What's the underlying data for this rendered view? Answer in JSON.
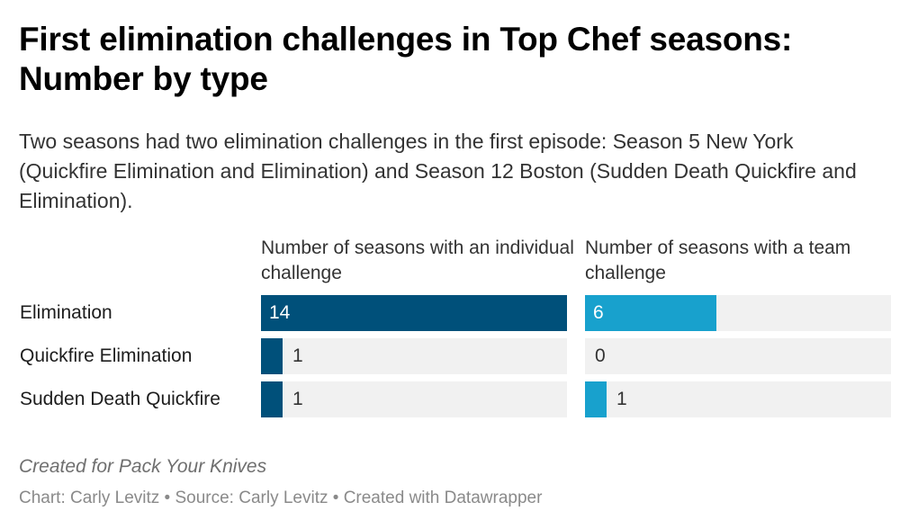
{
  "header": {
    "title": "First elimination challenges in Top Chef seasons: Number by type",
    "subtitle": "Two seasons had two elimination challenges in the first episode: Season 5 New York (Quickfire Elimination and Elimination) and Season 12 Boston (Sudden Death Quickfire and Elimination)."
  },
  "chart_data": {
    "type": "bar",
    "categories": [
      "Elimination",
      "Quickfire Elimination",
      "Sudden Death Quickfire"
    ],
    "series": [
      {
        "name": "Number of seasons with an individual challenge",
        "values": [
          14,
          1,
          1
        ],
        "color": "#00507a"
      },
      {
        "name": "Number of seasons with a team challenge",
        "values": [
          6,
          0,
          1
        ],
        "color": "#18a1cd"
      }
    ],
    "xlim": [
      0,
      14
    ],
    "track_color": "#f1f1f1",
    "grid": false,
    "legend": "column headers above each panel"
  },
  "footer": {
    "notes": "Created for Pack Your Knives",
    "credit": "Chart: Carly Levitz • Source: Carly Levitz • Created with Datawrapper"
  }
}
